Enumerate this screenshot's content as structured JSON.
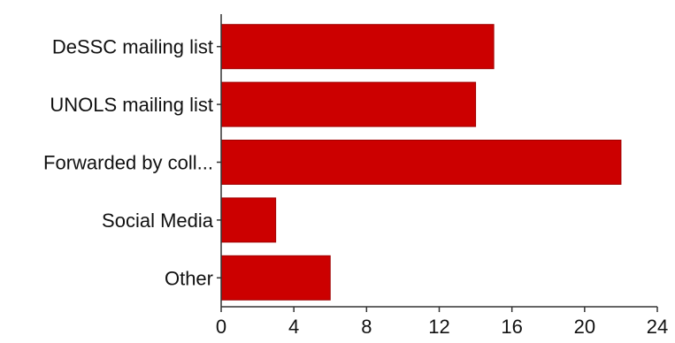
{
  "chart_data": {
    "type": "bar",
    "orientation": "horizontal",
    "categories": [
      "DeSSC mailing list",
      "UNOLS mailing list",
      "Forwarded by coll...",
      "Social Media",
      "Other"
    ],
    "values": [
      15,
      14,
      22,
      3,
      6
    ],
    "xlim": [
      0,
      24
    ],
    "xticks": [
      0,
      4,
      8,
      12,
      16,
      20,
      24
    ],
    "grid": false,
    "legend": "none",
    "title": "",
    "xlabel": "",
    "ylabel": "",
    "bar_color": "#cc0000"
  }
}
